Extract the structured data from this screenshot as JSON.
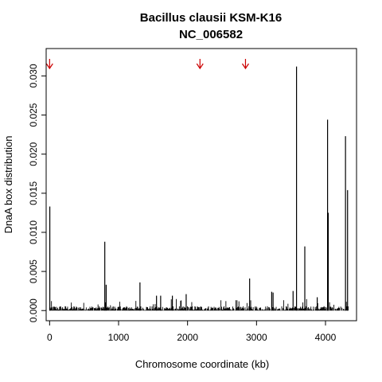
{
  "chart_data": {
    "type": "bar",
    "title": "Bacillus clausii KSM-K16",
    "subtitle": "NC_006582",
    "xlabel": "Chromosome coordinate (kb)",
    "ylabel": "DnaA box distribution",
    "xlim": [
      -50,
      4450
    ],
    "ylim": [
      -0.0013,
      0.0335
    ],
    "xticks": [
      0,
      1000,
      2000,
      3000,
      4000
    ],
    "yticks": [
      0.0,
      0.005,
      0.01,
      0.015,
      0.02,
      0.025,
      0.03
    ],
    "ytick_labels": [
      "0.000",
      "0.005",
      "0.010",
      "0.015",
      "0.020",
      "0.025",
      "0.030"
    ],
    "bar_color": "#000000",
    "marker_color": "#cc0000",
    "markers_x": [
      0,
      2180,
      2840
    ],
    "major_bars": [
      {
        "x": 3,
        "y": 0.0133
      },
      {
        "x": 800,
        "y": 0.0088
      },
      {
        "x": 820,
        "y": 0.0033
      },
      {
        "x": 1310,
        "y": 0.0036
      },
      {
        "x": 1550,
        "y": 0.0019
      },
      {
        "x": 1610,
        "y": 0.0019
      },
      {
        "x": 1780,
        "y": 0.0019
      },
      {
        "x": 1980,
        "y": 0.0021
      },
      {
        "x": 2900,
        "y": 0.0041
      },
      {
        "x": 3220,
        "y": 0.0024
      },
      {
        "x": 3240,
        "y": 0.0023
      },
      {
        "x": 3530,
        "y": 0.0025
      },
      {
        "x": 3580,
        "y": 0.0312
      },
      {
        "x": 3700,
        "y": 0.0082
      },
      {
        "x": 3880,
        "y": 0.0017
      },
      {
        "x": 4030,
        "y": 0.0244
      },
      {
        "x": 4040,
        "y": 0.0125
      },
      {
        "x": 4290,
        "y": 0.0223
      },
      {
        "x": 4320,
        "y": 0.0154
      }
    ]
  }
}
